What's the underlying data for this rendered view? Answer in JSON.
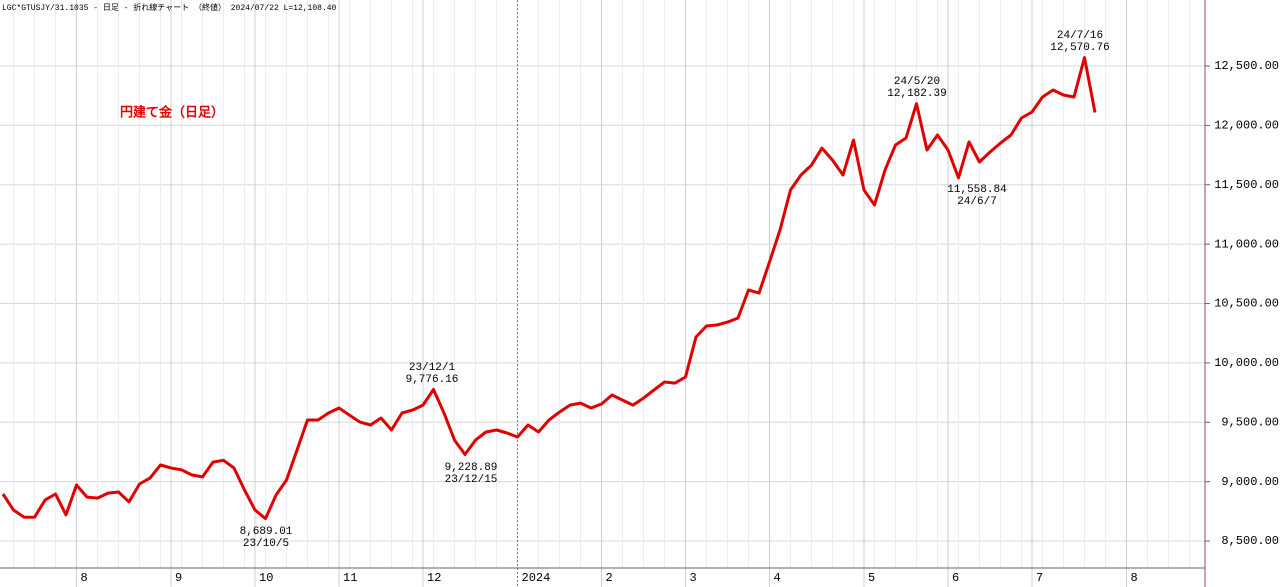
{
  "chart_data": {
    "type": "line",
    "subtitle": "LGC*GTUSJY/31.1035 - 日足 - 折れ線チャート （終値） 2024/07/22 L=12,108.40",
    "title": "円建て金（日足）",
    "categories": [
      null,
      null,
      null,
      null,
      null,
      null,
      null,
      "8",
      null,
      null,
      null,
      null,
      null,
      null,
      null,
      null,
      "9",
      null,
      null,
      null,
      null,
      null,
      null,
      null,
      "10",
      null,
      null,
      null,
      null,
      null,
      null,
      null,
      "11",
      null,
      null,
      null,
      null,
      null,
      null,
      null,
      "12",
      null,
      null,
      null,
      null,
      null,
      null,
      null,
      null,
      "2024",
      null,
      null,
      null,
      null,
      null,
      null,
      null,
      "2",
      null,
      null,
      null,
      null,
      null,
      null,
      null,
      "3",
      null,
      null,
      null,
      null,
      null,
      null,
      null,
      "4",
      null,
      null,
      null,
      null,
      null,
      null,
      null,
      null,
      "5",
      null,
      null,
      null,
      null,
      null,
      null,
      null,
      "6",
      null,
      null,
      null,
      null,
      null,
      null,
      null,
      "7",
      null,
      null,
      null,
      null,
      null,
      null,
      null,
      null,
      "8",
      null,
      null,
      null,
      null,
      null,
      null,
      null
    ],
    "values": [
      8896,
      8761,
      8702,
      8700,
      8845,
      8896,
      8720,
      8972,
      8870,
      8862,
      8904,
      8913,
      8830,
      8980,
      9030,
      9140,
      9115,
      9100,
      9056,
      9040,
      9165,
      9180,
      9115,
      8930,
      8761,
      8689.01,
      8887,
      9014,
      9266,
      9519,
      9519,
      9578,
      9620,
      9560,
      9502,
      9477,
      9536,
      9435,
      9578,
      9603,
      9645,
      9776.16,
      9578,
      9350,
      9228.89,
      9350,
      9418,
      9435,
      9410,
      9376,
      9477,
      9418,
      9519,
      9586,
      9645,
      9662,
      9620,
      9654,
      9730,
      9687,
      9645,
      9704,
      9772,
      9839,
      9830,
      9881,
      10218,
      10311,
      10319,
      10344,
      10378,
      10614,
      10588,
      10850,
      11119,
      11456,
      11582,
      11666,
      11809,
      11708,
      11582,
      11877,
      11456,
      11330,
      11624,
      11835,
      11894,
      12182.39,
      11793,
      11919,
      11793,
      11558.84,
      11860,
      11692,
      11776,
      11851,
      11919,
      12062,
      12113,
      12239,
      12298,
      12256,
      12239,
      12570.76,
      12108.4,
      null,
      null,
      null,
      null,
      null,
      null,
      null,
      null,
      null,
      null
    ],
    "color": "#e00000",
    "ylim": [
      8273,
      13056
    ],
    "yticks": [
      {
        "value": 8500,
        "label": "8,500.00"
      },
      {
        "value": 9000,
        "label": "9,000.00"
      },
      {
        "value": 9500,
        "label": "9,500.00"
      },
      {
        "value": 10000,
        "label": "10,000.00"
      },
      {
        "value": 10500,
        "label": "10,500.00"
      },
      {
        "value": 11000,
        "label": "11,000.00"
      },
      {
        "value": 11500,
        "label": "11,500.00"
      },
      {
        "value": 12000,
        "label": "12,000.00"
      },
      {
        "value": 12500,
        "label": "12,500.00"
      }
    ],
    "grid": true,
    "annotations": [
      [
        "24/7/16",
        "12,570.76"
      ],
      [
        "24/5/20",
        "12,182.39"
      ],
      [
        "11,558.84",
        "24/6/7"
      ],
      [
        "23/12/1",
        "9,776.16"
      ],
      [
        "9,228.89",
        "23/12/15"
      ],
      [
        "8,689.01",
        "23/10/5"
      ]
    ]
  }
}
